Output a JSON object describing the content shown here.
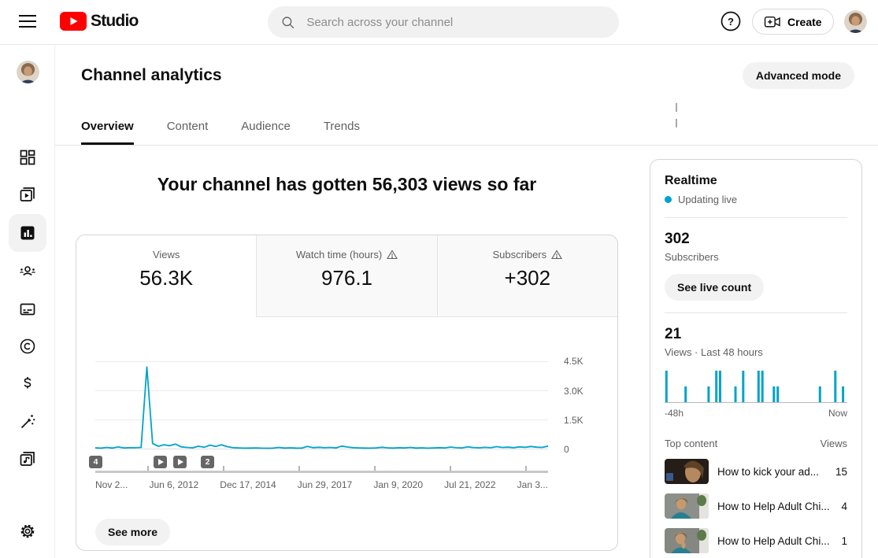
{
  "topbar": {
    "logo": {
      "brand": "Studio"
    },
    "search": {
      "placeholder": "Search across your channel"
    },
    "create_label": "Create"
  },
  "sidebar": {
    "items": [
      {
        "icon": "dashboard-icon"
      },
      {
        "icon": "content-icon"
      },
      {
        "icon": "analytics-icon",
        "active": true
      },
      {
        "icon": "community-icon"
      },
      {
        "icon": "subtitles-icon"
      },
      {
        "icon": "copyright-icon"
      },
      {
        "icon": "earn-icon"
      },
      {
        "icon": "customization-icon"
      },
      {
        "icon": "audio-library-icon"
      }
    ],
    "settings_icon": "settings-icon"
  },
  "header": {
    "title": "Channel analytics",
    "advanced_mode_label": "Advanced mode",
    "tabs": [
      {
        "label": "Overview",
        "active": true
      },
      {
        "label": "Content"
      },
      {
        "label": "Audience"
      },
      {
        "label": "Trends"
      }
    ]
  },
  "overview": {
    "headline": "Your channel has gotten 56,303 views so far",
    "metrics": [
      {
        "label": "Views",
        "value": "56.3K",
        "active": true,
        "warning": false
      },
      {
        "label": "Watch time (hours)",
        "value": "976.1",
        "warning": true
      },
      {
        "label": "Subscribers",
        "value": "+302",
        "warning": true
      }
    ],
    "see_more_label": "See more"
  },
  "chart_data": [
    {
      "type": "line",
      "name": "channel-views-lifetime",
      "series": [
        {
          "name": "Views",
          "values": [
            40,
            25,
            60,
            30,
            85,
            35,
            50,
            45,
            60,
            4200,
            260,
            120,
            200,
            150,
            230,
            90,
            60,
            40,
            120,
            70,
            180,
            110,
            200,
            100,
            50,
            35,
            25,
            30,
            35,
            25,
            20,
            25,
            60,
            30,
            40,
            30,
            25,
            110,
            50,
            70,
            45,
            60,
            35,
            130,
            80,
            50,
            35,
            30,
            25,
            35,
            70,
            40,
            30,
            45,
            35,
            60,
            30,
            40,
            25,
            35,
            50,
            35,
            80,
            45,
            35,
            90,
            55,
            40,
            65,
            45,
            100,
            60,
            75,
            50,
            90,
            65,
            110,
            75,
            60,
            130
          ]
        }
      ],
      "ylim": [
        0,
        4500
      ],
      "y_ticks": [
        0,
        1500,
        3000,
        4500
      ],
      "y_tick_labels": [
        "0",
        "1.5K",
        "3.0K",
        "4.5K"
      ],
      "x_tick_labels": [
        "Nov 2...",
        "Jun 6, 2012",
        "Dec 17, 2014",
        "Jun 29, 2017",
        "Jan 9, 2020",
        "Jul 21, 2022",
        "Jan 3..."
      ],
      "grid": true,
      "peak_value_approx": 4200,
      "markers": [
        {
          "label": "4"
        },
        {
          "icon": "play"
        },
        {
          "icon": "play"
        },
        {
          "label": "2"
        }
      ]
    },
    {
      "type": "bar",
      "name": "realtime-views-last-48-hours",
      "values": [
        2,
        0,
        0,
        0,
        0,
        1,
        0,
        0,
        0,
        0,
        0,
        1,
        0,
        2,
        2,
        0,
        0,
        0,
        1,
        0,
        2,
        0,
        0,
        0,
        2,
        2,
        0,
        0,
        1,
        1,
        0,
        0,
        0,
        0,
        0,
        0,
        0,
        0,
        0,
        0,
        1,
        0,
        0,
        0,
        2,
        0,
        1,
        0
      ],
      "x_left_label": "-48h",
      "x_right_label": "Now",
      "total_views": 21
    }
  ],
  "realtime": {
    "title": "Realtime",
    "updating_label": "Updating live",
    "subscribers": {
      "value": "302",
      "label": "Subscribers"
    },
    "live_count_label": "See live count",
    "views_48h": {
      "value": "21",
      "label": "Views · Last 48 hours"
    },
    "top_content": {
      "title": "Top content",
      "views_header": "Views",
      "items": [
        {
          "title": "How to kick your ad...",
          "views": "15"
        },
        {
          "title": "How to Help Adult Chi...",
          "views": "4"
        },
        {
          "title": "How to Help Adult Chi...",
          "views": "1"
        }
      ]
    }
  },
  "colors": {
    "accent_teal": "#00a3cc",
    "brand_red": "#ff0000",
    "text_primary": "#0f0f0f",
    "text_secondary": "#606060",
    "button_gray": "#f2f2f2"
  }
}
